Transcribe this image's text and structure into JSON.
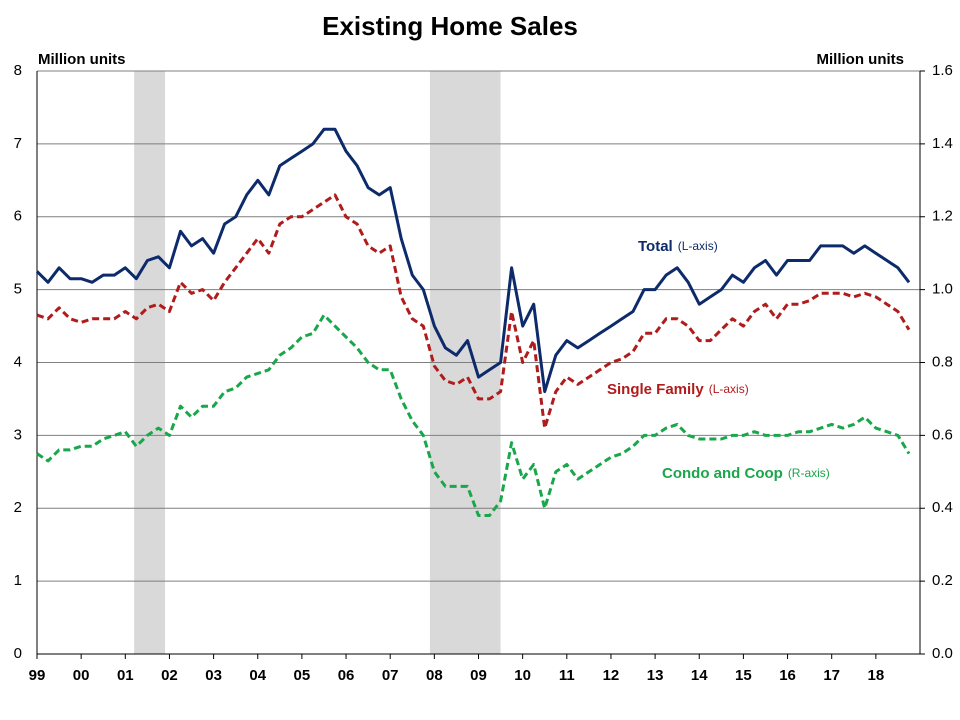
{
  "chart_data": {
    "type": "line",
    "title": "Existing Home Sales",
    "ylabel": "Million units",
    "y2label": "Million units",
    "xlim": [
      1999,
      2019
    ],
    "xticks": [
      {
        "value": 1999,
        "label": "99"
      },
      {
        "value": 2000,
        "label": "00"
      },
      {
        "value": 2001,
        "label": "01"
      },
      {
        "value": 2002,
        "label": "02"
      },
      {
        "value": 2003,
        "label": "03"
      },
      {
        "value": 2004,
        "label": "04"
      },
      {
        "value": 2005,
        "label": "05"
      },
      {
        "value": 2006,
        "label": "06"
      },
      {
        "value": 2007,
        "label": "07"
      },
      {
        "value": 2008,
        "label": "08"
      },
      {
        "value": 2009,
        "label": "09"
      },
      {
        "value": 2010,
        "label": "10"
      },
      {
        "value": 2011,
        "label": "11"
      },
      {
        "value": 2012,
        "label": "12"
      },
      {
        "value": 2013,
        "label": "13"
      },
      {
        "value": 2014,
        "label": "14"
      },
      {
        "value": 2015,
        "label": "15"
      },
      {
        "value": 2016,
        "label": "16"
      },
      {
        "value": 2017,
        "label": "17"
      },
      {
        "value": 2018,
        "label": "18"
      }
    ],
    "ylim": [
      0,
      8
    ],
    "yticks": [
      0,
      1,
      2,
      3,
      4,
      5,
      6,
      7,
      8
    ],
    "y2lim": [
      0,
      1.6
    ],
    "y2ticks": [
      {
        "value": 0,
        "label": "0.0"
      },
      0.2,
      0.4,
      0.6,
      0.8,
      {
        "value": 1,
        "label": "1.0"
      },
      1.2,
      1.4,
      1.6
    ],
    "grid": true,
    "recessions": [
      [
        2001.2,
        2001.9
      ],
      [
        2007.9,
        2009.5
      ]
    ],
    "x": [
      1999,
      1999.25,
      1999.5,
      1999.75,
      2000,
      2000.25,
      2000.5,
      2000.75,
      2001,
      2001.25,
      2001.5,
      2001.75,
      2002,
      2002.25,
      2002.5,
      2002.75,
      2003,
      2003.25,
      2003.5,
      2003.75,
      2004,
      2004.25,
      2004.5,
      2004.75,
      2005,
      2005.25,
      2005.5,
      2005.75,
      2006,
      2006.25,
      2006.5,
      2006.75,
      2007,
      2007.25,
      2007.5,
      2007.75,
      2008,
      2008.25,
      2008.5,
      2008.75,
      2009,
      2009.25,
      2009.5,
      2009.75,
      2010,
      2010.25,
      2010.5,
      2010.75,
      2011,
      2011.25,
      2011.5,
      2011.75,
      2012,
      2012.25,
      2012.5,
      2012.75,
      2013,
      2013.25,
      2013.5,
      2013.75,
      2014,
      2014.25,
      2014.5,
      2014.75,
      2015,
      2015.25,
      2015.5,
      2015.75,
      2016,
      2016.25,
      2016.5,
      2016.75,
      2017,
      2017.25,
      2017.5,
      2017.75,
      2018,
      2018.25,
      2018.5,
      2018.75
    ],
    "series": [
      {
        "name": "Total",
        "note": "(L-axis)",
        "color": "#0d2a6b",
        "dashed": false,
        "axis": "y",
        "values": [
          5.25,
          5.1,
          5.3,
          5.15,
          5.15,
          5.1,
          5.2,
          5.2,
          5.3,
          5.15,
          5.4,
          5.45,
          5.3,
          5.8,
          5.6,
          5.7,
          5.5,
          5.9,
          6.0,
          6.3,
          6.5,
          6.3,
          6.7,
          6.8,
          6.9,
          7.0,
          7.2,
          7.2,
          6.9,
          6.7,
          6.4,
          6.3,
          6.4,
          5.7,
          5.2,
          5.0,
          4.5,
          4.2,
          4.1,
          4.3,
          3.8,
          3.9,
          4.0,
          5.3,
          4.5,
          4.8,
          3.6,
          4.1,
          4.3,
          4.2,
          4.3,
          4.4,
          4.5,
          4.6,
          4.7,
          5.0,
          5.0,
          5.2,
          5.3,
          5.1,
          4.8,
          4.9,
          5.0,
          5.2,
          5.1,
          5.3,
          5.4,
          5.2,
          5.4,
          5.4,
          5.4,
          5.6,
          5.6,
          5.6,
          5.5,
          5.6,
          5.5,
          5.4,
          5.3,
          5.1
        ]
      },
      {
        "name": "Single Family",
        "note": "(L-axis)",
        "color": "#b01c1c",
        "dashed": true,
        "axis": "y",
        "values": [
          4.65,
          4.6,
          4.75,
          4.6,
          4.55,
          4.6,
          4.6,
          4.6,
          4.7,
          4.6,
          4.75,
          4.8,
          4.7,
          5.1,
          4.95,
          5.0,
          4.85,
          5.1,
          5.3,
          5.5,
          5.7,
          5.5,
          5.9,
          6.0,
          6.0,
          6.1,
          6.2,
          6.3,
          6.0,
          5.9,
          5.6,
          5.5,
          5.6,
          4.9,
          4.6,
          4.5,
          3.95,
          3.75,
          3.7,
          3.8,
          3.5,
          3.5,
          3.6,
          4.7,
          4.0,
          4.3,
          3.1,
          3.6,
          3.8,
          3.7,
          3.8,
          3.9,
          4.0,
          4.05,
          4.15,
          4.4,
          4.4,
          4.6,
          4.6,
          4.5,
          4.3,
          4.3,
          4.45,
          4.6,
          4.5,
          4.7,
          4.8,
          4.6,
          4.8,
          4.8,
          4.85,
          4.95,
          4.95,
          4.95,
          4.9,
          4.95,
          4.9,
          4.8,
          4.7,
          4.45
        ]
      },
      {
        "name": "Condo and Coop",
        "note": "(R-axis)",
        "color": "#1aa64a",
        "dashed": true,
        "axis": "y2",
        "values": [
          0.55,
          0.53,
          0.56,
          0.56,
          0.57,
          0.57,
          0.59,
          0.6,
          0.61,
          0.57,
          0.6,
          0.62,
          0.6,
          0.68,
          0.65,
          0.68,
          0.68,
          0.72,
          0.73,
          0.76,
          0.77,
          0.78,
          0.82,
          0.84,
          0.87,
          0.88,
          0.93,
          0.9,
          0.87,
          0.84,
          0.8,
          0.78,
          0.78,
          0.7,
          0.64,
          0.6,
          0.5,
          0.46,
          0.46,
          0.46,
          0.38,
          0.38,
          0.42,
          0.58,
          0.48,
          0.52,
          0.4,
          0.5,
          0.52,
          0.48,
          0.5,
          0.52,
          0.54,
          0.55,
          0.57,
          0.6,
          0.6,
          0.62,
          0.63,
          0.6,
          0.59,
          0.59,
          0.59,
          0.6,
          0.6,
          0.61,
          0.6,
          0.6,
          0.6,
          0.61,
          0.61,
          0.62,
          0.63,
          0.62,
          0.63,
          0.65,
          0.62,
          0.61,
          0.6,
          0.55
        ]
      }
    ]
  }
}
